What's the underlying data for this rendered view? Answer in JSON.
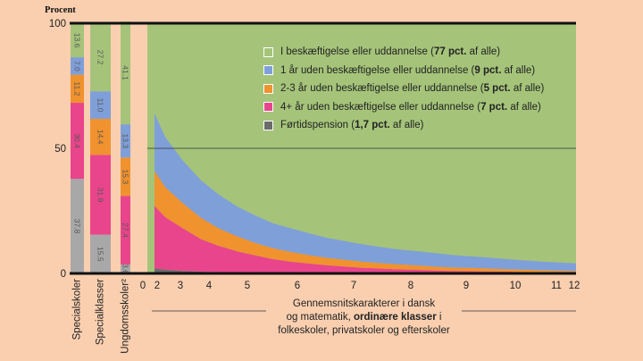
{
  "chart_data": {
    "type": "area",
    "ylabel": "Procent",
    "ylim": [
      0,
      100
    ],
    "yticks": [
      "0",
      "50",
      "100"
    ],
    "xlabel": {
      "line1": "Gennemsnitskarakterer i dansk",
      "line2_pre": "og matematik, ",
      "line2_bold": "ordinære klasser",
      "line2_post": " i",
      "line3": "folkeskoler, privatskoler og efterskoler"
    },
    "xticks": [
      "0",
      "2",
      "3",
      "4",
      "5",
      "6",
      "7",
      "8",
      "9",
      "10",
      "11",
      "12"
    ],
    "legend": [
      {
        "label": "I beskæftigelse eller uddannelse (",
        "bold": "77 pct.",
        "suffix": " af alle)",
        "color": "#a5c47a"
      },
      {
        "label": "1 år uden beskæftigelse eller uddannelse (",
        "bold": "9 pct.",
        "suffix": " af alle)",
        "color": "#7f9fd9"
      },
      {
        "label": "2-3 år uden beskæftigelse eller uddannelse (",
        "bold": "5 pct.",
        "suffix": " af alle)",
        "color": "#f0922e"
      },
      {
        "label": "4+ år uden beskæftigelse eller uddannelse (",
        "bold": "7 pct.",
        "suffix": " af alle)",
        "color": "#e8458c"
      },
      {
        "label": "Førtidspension (",
        "bold": "1,7 pct.",
        "suffix": " af alle)",
        "color": "#6b6b6b"
      }
    ],
    "bars": [
      {
        "category": "Specialskoler",
        "segments": [
          {
            "value": 37.8,
            "label": "37.8",
            "color": "#a8a8a8"
          },
          {
            "value": 30.4,
            "label": "30.4",
            "color": "#e8458c"
          },
          {
            "value": 11.2,
            "label": "11.2",
            "color": "#f0922e"
          },
          {
            "value": 7.0,
            "label": "7.0",
            "color": "#7f9fd9"
          },
          {
            "value": 13.6,
            "label": "13.6",
            "color": "#a5c47a"
          }
        ]
      },
      {
        "category": "Specialklasser",
        "segments": [
          {
            "value": 15.5,
            "label": "15.5",
            "color": "#a8a8a8"
          },
          {
            "value": 31.9,
            "label": "31.9",
            "color": "#e8458c"
          },
          {
            "value": 14.4,
            "label": "14.4",
            "color": "#f0922e"
          },
          {
            "value": 11.0,
            "label": "11.0",
            "color": "#7f9fd9"
          },
          {
            "value": 27.2,
            "label": "27.2",
            "color": "#a5c47a"
          }
        ]
      },
      {
        "category": "Ungdomsskoler²",
        "segments": [
          {
            "value": 3.6,
            "label": "3.6",
            "color": "#a8a8a8"
          },
          {
            "value": 27.4,
            "label": "27.4",
            "color": "#e8458c"
          },
          {
            "value": 15.3,
            "label": "15.3",
            "color": "#f0922e"
          },
          {
            "value": 13.3,
            "label": "13.3",
            "color": "#7f9fd9"
          },
          {
            "value": 41.1,
            "label": "41.1",
            "color": "#a5c47a"
          }
        ]
      }
    ],
    "area": {
      "x": [
        0.2,
        0.5,
        1,
        1.5,
        2,
        2.5,
        3,
        3.5,
        4,
        4.5,
        5,
        5.5,
        6,
        6.5,
        7,
        7.5,
        8,
        8.5,
        9,
        9.5,
        10,
        10.5,
        11,
        11.5,
        12
      ],
      "series": [
        {
          "name": "Førtidspension",
          "color": "#6b6b6b",
          "values": [
            2.0,
            1.5,
            1.0,
            0.7,
            0.5,
            0.4,
            0.3,
            0.25,
            0.2,
            0.15,
            0.1,
            0.1,
            0.1,
            0.05,
            0.05,
            0.05,
            0,
            0,
            0,
            0,
            0,
            0,
            0,
            0,
            0
          ]
        },
        {
          "name": "4+ år uden beskæftigelse eller uddannelse",
          "color": "#e8458c",
          "values": [
            25,
            21,
            17,
            13,
            10.5,
            8.5,
            7,
            5.5,
            4.5,
            3.8,
            3.2,
            2.7,
            2.2,
            1.9,
            1.6,
            1.4,
            1.2,
            1.0,
            0.9,
            0.8,
            0.7,
            0.6,
            0.5,
            0.4,
            0.4
          ]
        },
        {
          "name": "2-3 år uden beskæftigelse eller uddannelse",
          "color": "#f0922e",
          "values": [
            14,
            12,
            10,
            8.5,
            7,
            6,
            5,
            4.4,
            3.9,
            3.4,
            3.0,
            2.7,
            2.4,
            2.2,
            2.0,
            1.8,
            1.6,
            1.4,
            1.3,
            1.2,
            1.0,
            0.9,
            0.8,
            0.7,
            0.6
          ]
        },
        {
          "name": "1 år uden beskæftigelse eller uddannelse",
          "color": "#7f9fd9",
          "values": [
            23,
            20,
            17,
            15,
            13.5,
            12,
            11,
            10,
            9.5,
            8.8,
            8.0,
            7.5,
            7.0,
            6.5,
            6.0,
            5.7,
            5.4,
            5.0,
            4.7,
            4.4,
            4.1,
            3.8,
            3.5,
            3.3,
            3.0
          ]
        }
      ]
    }
  }
}
